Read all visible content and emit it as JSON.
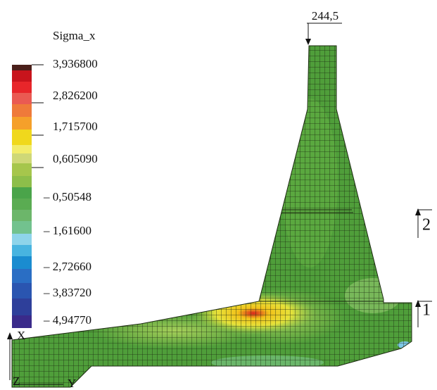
{
  "legend": {
    "title": "Sigma_x",
    "labels": [
      "3,936800",
      "2,826200",
      "1,715700",
      "0,605090",
      "– 0,50548",
      "– 1,61600",
      "– 2,72660",
      "– 3,83720",
      "– 4,94770"
    ]
  },
  "annotations": {
    "load": "244,5",
    "section_2": "2",
    "section_1": "1"
  },
  "axes": {
    "x": "X",
    "y": "Y",
    "z": "Z"
  }
}
